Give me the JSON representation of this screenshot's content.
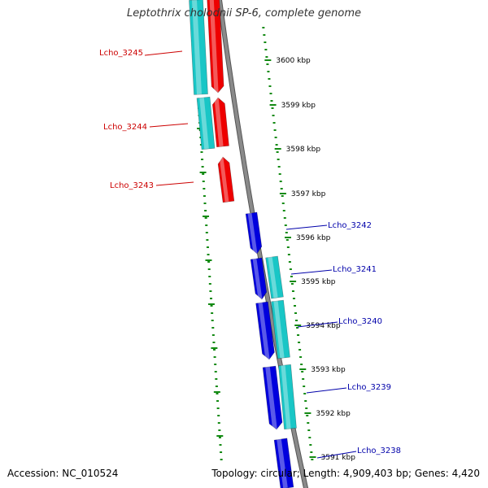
{
  "title": "Leptothrix cholodnii SP-6, complete genome",
  "footer": {
    "accession": "Accession: NC_010524",
    "summary": "Topology: circular; Length: 4,909,403 bp; Genes: 4,420"
  },
  "colors": {
    "backbone": "#8a8a8a",
    "tick": "#138a13",
    "gene_forward": "#0000dd",
    "gene_reverse": "#ee0000",
    "cds_cyan": "#19c6c6",
    "label_forward": "#0000aa",
    "label_reverse": "#cc0000"
  },
  "scale_labels": [
    "3600 kbp",
    "3599 kbp",
    "3598 kbp",
    "3597 kbp",
    "3596 kbp",
    "3595 kbp",
    "3594 kbp",
    "3593 kbp",
    "3592 kbp",
    "3591 kbp"
  ],
  "genes_reverse": [
    "Lcho_3245",
    "Lcho_3244",
    "Lcho_3243"
  ],
  "genes_forward": [
    "Lcho_3242",
    "Lcho_3241",
    "Lcho_3240",
    "Lcho_3239",
    "Lcho_3238"
  ]
}
